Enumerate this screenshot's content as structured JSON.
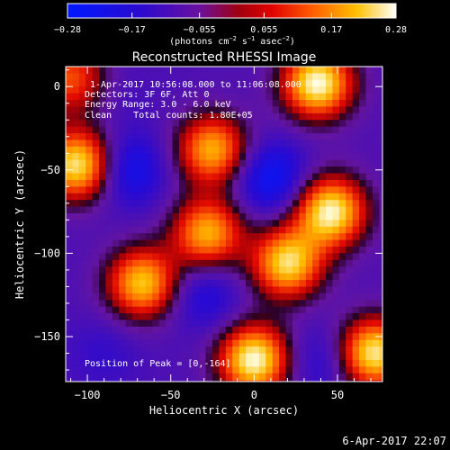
{
  "chart_data": {
    "type": "heatmap",
    "title": "Reconstructed RHESSI Image",
    "xlabel": "Heliocentric X (arcsec)",
    "ylabel": "Heliocentric Y (arcsec)",
    "xlim": [
      -113,
      77
    ],
    "ylim": [
      -177,
      12
    ],
    "x_ticks": [
      -100,
      -50,
      0,
      50
    ],
    "x_tick_labels": [
      "−100",
      "−50",
      "0",
      "50"
    ],
    "y_ticks": [
      0,
      -50,
      -100,
      -150
    ],
    "y_tick_labels": [
      "0",
      "−50",
      "−100",
      "−150"
    ],
    "colorbar": {
      "range": [
        -0.28,
        0.28
      ],
      "ticks": [
        -0.28,
        -0.17,
        -0.055,
        0.055,
        0.17,
        0.28
      ],
      "tick_labels": [
        "−0.28",
        "−0.17",
        "−0.055",
        "0.055",
        "0.17",
        "0.28"
      ],
      "unit_label": "(photons cm",
      "unit_exp1": "−2",
      "unit_mid": " s",
      "unit_exp2": "−1",
      "unit_tail": " asec",
      "unit_exp3": "−2",
      "unit_end": ")"
    },
    "annotations": {
      "time_range": "1-Apr-2017 10:56:08.000 to 11:06:08.000",
      "detectors": "Detectors: 3F 6F, Att 0",
      "energy": "Energy Range: 3.0 - 6.0 keV",
      "clean": "Clean    Total counts: 1.80E+05",
      "peak": "Position of Peak = [0,-164]"
    },
    "sources": [
      {
        "x": 38,
        "y": 2,
        "value": 0.28
      },
      {
        "x": -106,
        "y": -47,
        "value": 0.26
      },
      {
        "x": -25,
        "y": -38,
        "value": 0.2
      },
      {
        "x": -28,
        "y": -88,
        "value": 0.2
      },
      {
        "x": 46,
        "y": -75,
        "value": 0.27
      },
      {
        "x": 20,
        "y": -106,
        "value": 0.24
      },
      {
        "x": -67,
        "y": -118,
        "value": 0.22
      },
      {
        "x": 0,
        "y": -164,
        "value": 0.28
      },
      {
        "x": 72,
        "y": -160,
        "value": 0.26
      },
      {
        "x": -110,
        "y": 5,
        "value": 0.12
      }
    ],
    "minima": [
      {
        "x": -75,
        "y": -50,
        "value": -0.24
      },
      {
        "x": 10,
        "y": -55,
        "value": -0.26
      },
      {
        "x": -30,
        "y": -125,
        "value": -0.2
      },
      {
        "x": 40,
        "y": -165,
        "value": -0.18
      },
      {
        "x": -90,
        "y": -160,
        "value": -0.15
      },
      {
        "x": -80,
        "y": -5,
        "value": -0.12
      }
    ]
  },
  "footer": {
    "timestamp": "6-Apr-2017 22:07"
  }
}
